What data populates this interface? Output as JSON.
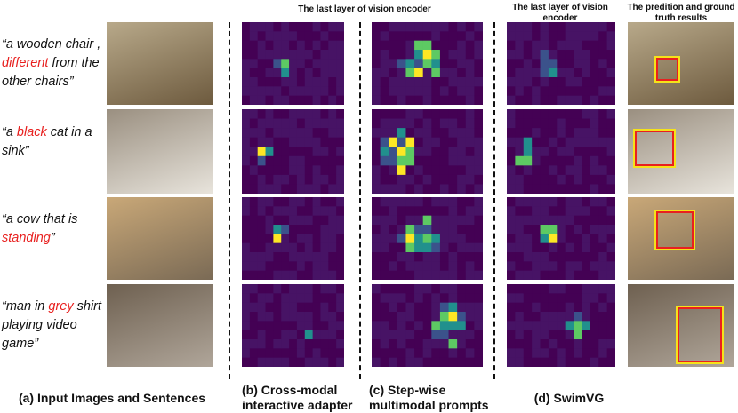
{
  "headers": {
    "encoder_shared": "The last layer of vision encoder",
    "encoder_swimvg": "The last layer of vision encoder",
    "results": "The predition and ground truth results"
  },
  "sentences": [
    {
      "parts": [
        {
          "text": "“a wooden chair , ",
          "highlight": false
        },
        {
          "text": "different",
          "highlight": true
        },
        {
          "text": " from the other chairs”",
          "highlight": false
        }
      ]
    },
    {
      "parts": [
        {
          "text": "“a ",
          "highlight": false
        },
        {
          "text": "black",
          "highlight": true
        },
        {
          "text": " cat in a sink”",
          "highlight": false
        }
      ]
    },
    {
      "parts": [
        {
          "text": "“a cow that is ",
          "highlight": false
        },
        {
          "text": "standing",
          "highlight": true
        },
        {
          "text": "”",
          "highlight": false
        }
      ]
    },
    {
      "parts": [
        {
          "text": "“man in ",
          "highlight": false
        },
        {
          "text": "grey",
          "highlight": true
        },
        {
          "text": " shirt playing video game”",
          "highlight": false
        }
      ]
    }
  ],
  "captions": {
    "a": "(a) Input Images and Sentences",
    "b": "(b) Cross-modal interactive adapter",
    "c": "(c) Step-wise multimodal prompts",
    "d": "(d) SwimVG"
  }
}
